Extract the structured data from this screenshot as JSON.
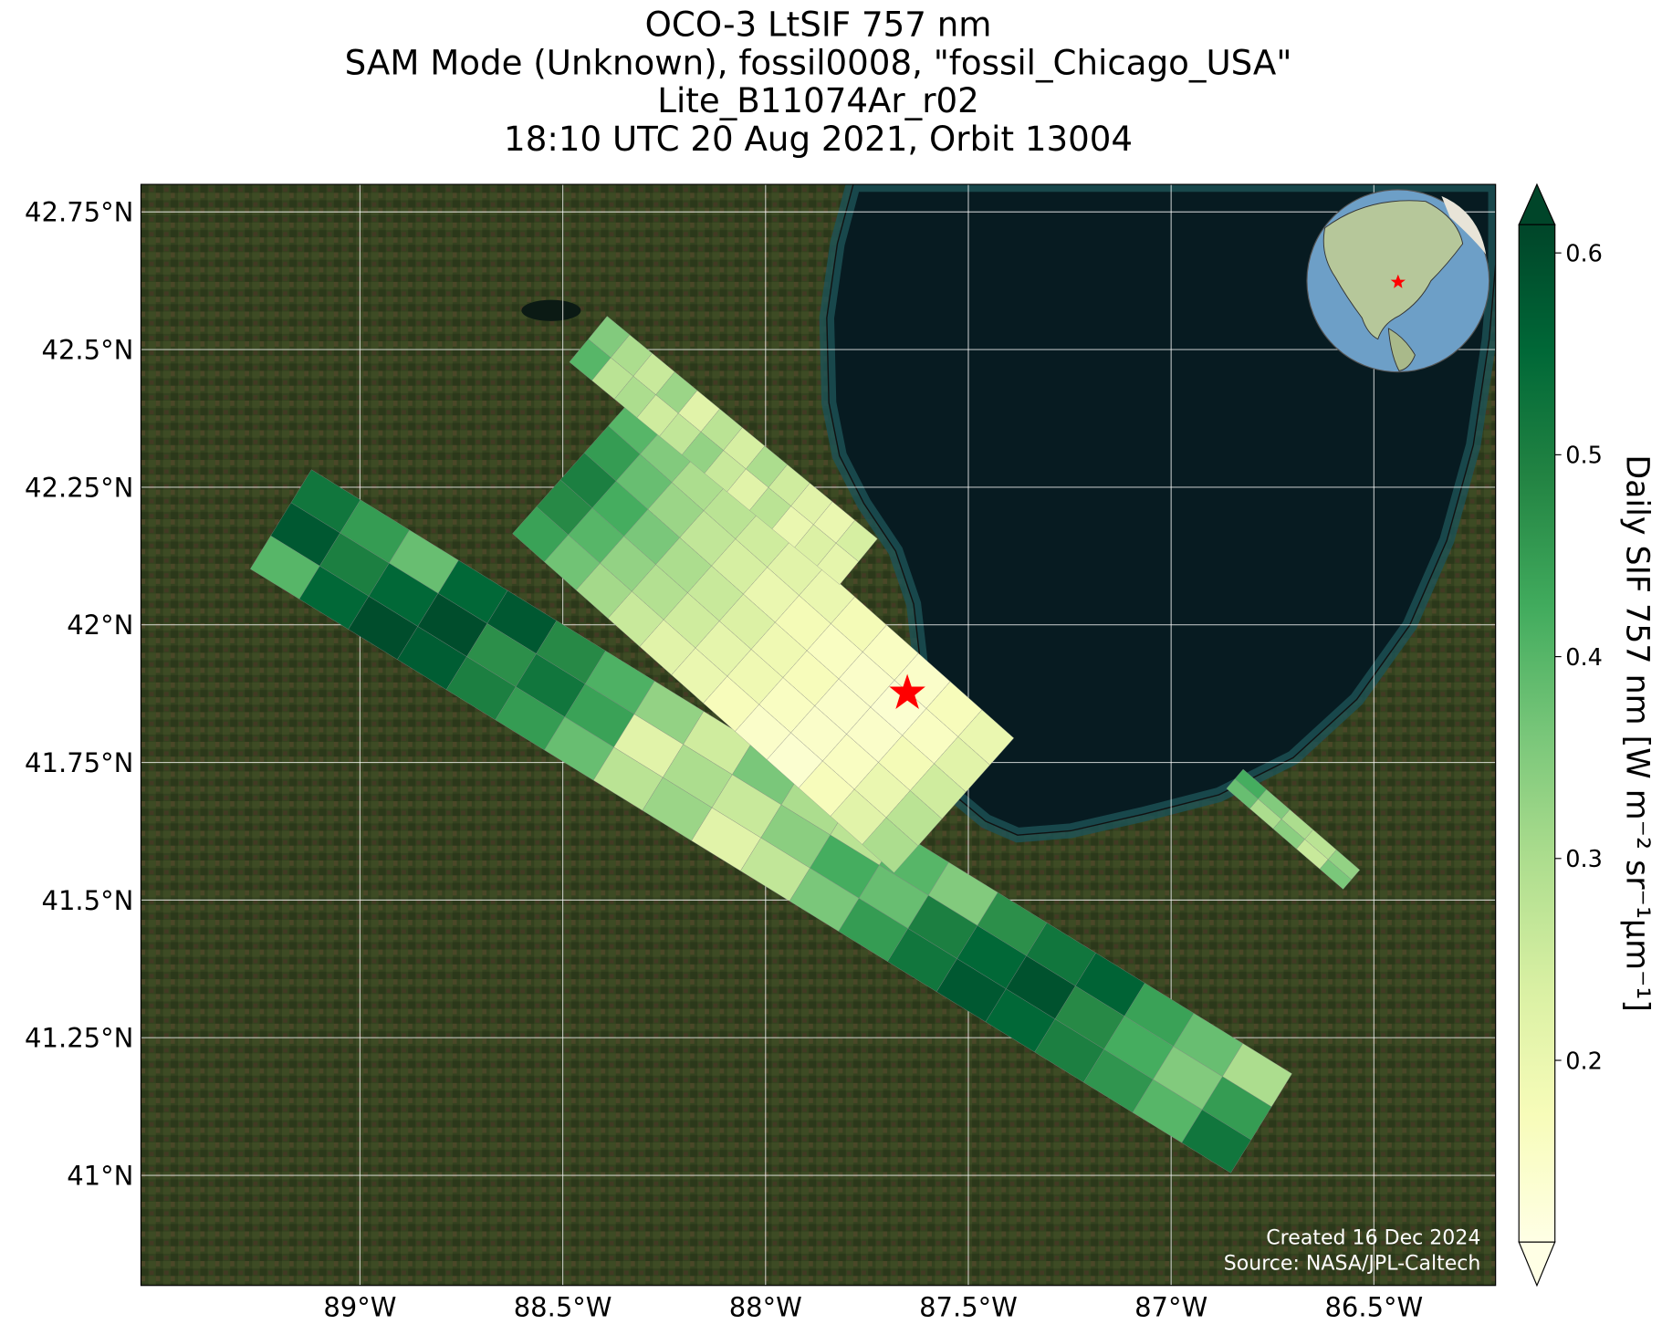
{
  "chart_data": {
    "type": "map",
    "title_lines": [
      "OCO-3 LtSIF 757 nm",
      "SAM Mode (Unknown), fossil0008, \"fossil_Chicago_USA\"",
      "Lite_B11074Ar_r02",
      "18:10 UTC 20 Aug 2021, Orbit 13004"
    ],
    "xlim": [
      -89.54,
      -86.2
    ],
    "ylim": [
      40.8,
      42.8
    ],
    "xticks": [
      {
        "value": -89,
        "label": "89°W"
      },
      {
        "value": -88.5,
        "label": "88.5°W"
      },
      {
        "value": -88,
        "label": "88°W"
      },
      {
        "value": -87.5,
        "label": "87.5°W"
      },
      {
        "value": -87,
        "label": "87°W"
      },
      {
        "value": -86.5,
        "label": "86.5°W"
      }
    ],
    "yticks": [
      {
        "value": 41,
        "label": "41°N"
      },
      {
        "value": 41.25,
        "label": "41.25°N"
      },
      {
        "value": 41.5,
        "label": "41.5°N"
      },
      {
        "value": 41.75,
        "label": "41.75°N"
      },
      {
        "value": 42,
        "label": "42°N"
      },
      {
        "value": 42.25,
        "label": "42.25°N"
      },
      {
        "value": 42.5,
        "label": "42.5°N"
      },
      {
        "value": 42.75,
        "label": "42.75°N"
      }
    ],
    "grid": true,
    "colorbar": {
      "label": "Daily SIF 757 nm [W m⁻² sr⁻¹μm⁻¹]",
      "clim": [
        0.11,
        0.614
      ],
      "ticks": [
        0.2,
        0.3,
        0.4,
        0.5,
        0.6
      ],
      "colors": [
        "#ffffe5",
        "#f7fcb9",
        "#d9f0a3",
        "#addd8e",
        "#78c679",
        "#41ab5d",
        "#238443",
        "#006837",
        "#004529"
      ]
    },
    "swaths": [
      {
        "values": [
          [
            0.52,
            0.45,
            0.38,
            0.55,
            0.58,
            0.48,
            0.41,
            0.33,
            0.25,
            0.36,
            0.3,
            0.28,
            0.4,
            0.35,
            0.47,
            0.52,
            0.56,
            0.44,
            0.38,
            0.3
          ],
          [
            0.58,
            0.5,
            0.55,
            0.6,
            0.47,
            0.52,
            0.44,
            0.22,
            0.3,
            0.26,
            0.34,
            0.42,
            0.38,
            0.5,
            0.55,
            0.59,
            0.48,
            0.42,
            0.35,
            0.45
          ],
          [
            0.4,
            0.55,
            0.6,
            0.57,
            0.5,
            0.45,
            0.38,
            0.28,
            0.32,
            0.22,
            0.27,
            0.36,
            0.45,
            0.52,
            0.58,
            0.55,
            0.5,
            0.46,
            0.4,
            0.52
          ]
        ]
      },
      {
        "values": [
          [
            0.4,
            0.35,
            0.3,
            0.28,
            0.25,
            0.22,
            0.2,
            0.18,
            0.16,
            0.15,
            0.17,
            0.2
          ],
          [
            0.45,
            0.38,
            0.32,
            0.27,
            0.24,
            0.2,
            0.18,
            0.16,
            0.15,
            0.14,
            0.16,
            0.22
          ],
          [
            0.5,
            0.42,
            0.36,
            0.3,
            0.26,
            0.23,
            0.19,
            0.17,
            0.15,
            0.15,
            0.18,
            0.25
          ],
          [
            0.48,
            0.4,
            0.33,
            0.29,
            0.25,
            0.21,
            0.19,
            0.16,
            0.15,
            0.16,
            0.2,
            0.28
          ],
          [
            0.44,
            0.37,
            0.31,
            0.26,
            0.22,
            0.2,
            0.17,
            0.15,
            0.14,
            0.17,
            0.22,
            0.3
          ]
        ]
      },
      {
        "values": [
          [
            0.35,
            0.3,
            0.26,
            0.32,
            0.22,
            0.28,
            0.24,
            0.3,
            0.25,
            0.22,
            0.2,
            0.24
          ],
          [
            0.4,
            0.28,
            0.3,
            0.25,
            0.27,
            0.33,
            0.26,
            0.22,
            0.28,
            0.2,
            0.23,
            0.21
          ]
        ]
      },
      {
        "values": [
          [
            0.42,
            0.35,
            0.3,
            0.28,
            0.33
          ],
          [
            0.38,
            0.3,
            0.34,
            0.26,
            0.36
          ]
        ]
      }
    ],
    "credits": [
      "Created 16 Dec 2024",
      "Source: NASA/JPL-Caltech"
    ]
  }
}
